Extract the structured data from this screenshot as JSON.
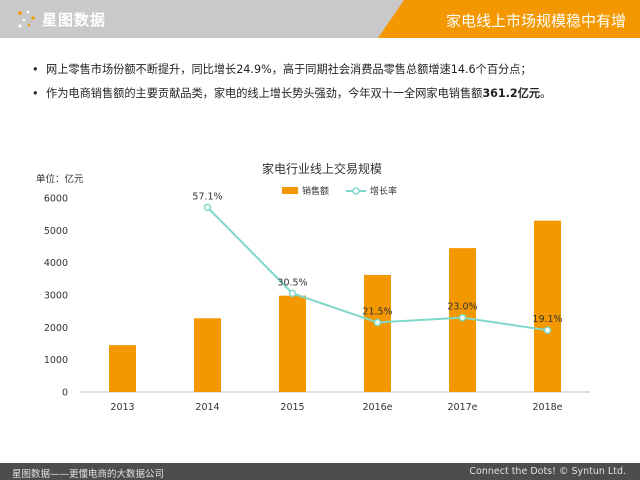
{
  "brand": {
    "logo_text": "星图数据",
    "accent": "#f39800",
    "header_bg": "#c9c9c9"
  },
  "header": {
    "title": "家电线上市场规模稳中有增"
  },
  "bullets": [
    {
      "text": "网上零售市场份额不断提升，同比增长24.9%，高于同期社会消费品零售总额增速14.6个百分点；"
    },
    {
      "text_before": "作为电商销售额的主要贡献品类，家电的线上增长势头强劲，今年双十一全网家电销售额",
      "text_bold": "361.2亿元",
      "text_after": "。"
    }
  ],
  "chart_data": {
    "type": "bar",
    "title": "家电行业线上交易规模",
    "unit_label": "单位：亿元",
    "categories": [
      "2013",
      "2014",
      "2015",
      "2016e",
      "2017e",
      "2018e"
    ],
    "ylim": [
      0,
      6000
    ],
    "yticks": [
      "0",
      "1000",
      "2000",
      "3000",
      "4000",
      "5000",
      "6000"
    ],
    "series": [
      {
        "name": "销售额",
        "kind": "bar",
        "color": "#f39800",
        "values": [
          1450,
          2280,
          2980,
          3620,
          4450,
          5300
        ]
      },
      {
        "name": "增长率",
        "kind": "line",
        "color": "#7fd8c9",
        "values": [
          null,
          57.1,
          30.5,
          21.5,
          23.0,
          19.1
        ],
        "labels": [
          "",
          "57.1%",
          "30.5%",
          "21.5%",
          "23.0%",
          "19.1%"
        ]
      }
    ],
    "legend_position": "top-center",
    "grid": false
  },
  "footer": {
    "left": "星图数据——更懂电商的大数据公司",
    "right": "Connect the Dots! © Syntun Ltd."
  }
}
